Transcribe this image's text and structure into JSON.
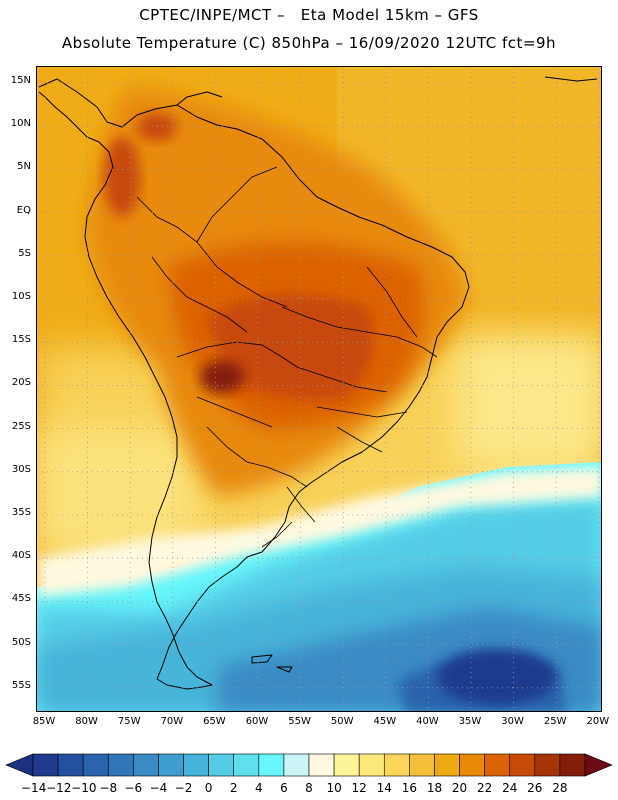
{
  "header": {
    "line1": "CPTEC/INPE/MCT –   Eta Model 15km – GFS",
    "line2": "Absolute Temperature (C) 850hPa – 16/09/2020 12UTC fct=9h"
  },
  "map": {
    "lat_ticks": [
      "15N",
      "10N",
      "5N",
      "EQ",
      "5S",
      "10S",
      "15S",
      "20S",
      "25S",
      "30S",
      "35S",
      "40S",
      "45S",
      "50S",
      "55S"
    ],
    "lon_ticks": [
      "85W",
      "80W",
      "75W",
      "70W",
      "65W",
      "60W",
      "55W",
      "50W",
      "45W",
      "40W",
      "35W",
      "30W",
      "25W",
      "20W"
    ],
    "gridline_style": "dotted"
  },
  "colorbar": {
    "labels": [
      "-14",
      "-12",
      "-10",
      "-8",
      "-6",
      "-4",
      "-2",
      "0",
      "2",
      "4",
      "6",
      "8",
      "10",
      "12",
      "14",
      "16",
      "18",
      "20",
      "22",
      "24",
      "26",
      "28"
    ],
    "colors": [
      "#1f3a8f",
      "#2450a0",
      "#2a64ad",
      "#3076b8",
      "#3a8ac4",
      "#3f9ecf",
      "#46b4da",
      "#55cce6",
      "#5fe0ee",
      "#66f6fb",
      "#cbf4f7",
      "#fff9e0",
      "#fef59a",
      "#fde87a",
      "#fcd657",
      "#f5bf38",
      "#eeaa12",
      "#e88a08",
      "#dc6206",
      "#c84a08",
      "#a53409",
      "#841e0a"
    ],
    "low_arrow_color": "#1c2f80",
    "high_arrow_color": "#6a0a12"
  }
}
